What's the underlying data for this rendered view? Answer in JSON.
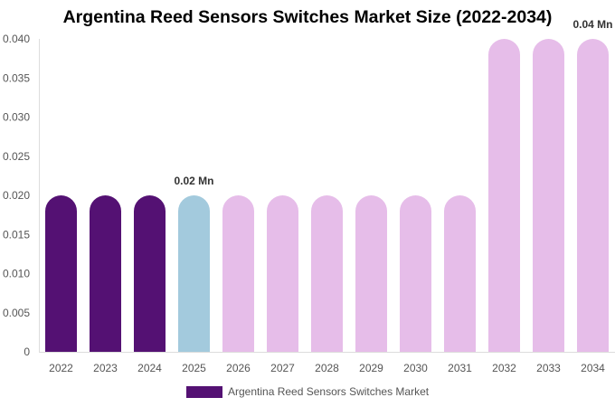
{
  "chart_data": {
    "type": "bar",
    "title": "Argentina Reed Sensors Switches Market Size (2022-2034)",
    "categories": [
      "2022",
      "2023",
      "2024",
      "2025",
      "2026",
      "2027",
      "2028",
      "2029",
      "2030",
      "2031",
      "2032",
      "2033",
      "2034"
    ],
    "series": [
      {
        "name": "Argentina Reed Sensors Switches Market",
        "values": [
          0.02,
          0.02,
          0.02,
          0.02,
          0.02,
          0.02,
          0.02,
          0.02,
          0.02,
          0.02,
          0.04,
          0.04,
          0.04
        ]
      }
    ],
    "bar_colors": [
      "#541173",
      "#541173",
      "#541173",
      "#a3cadd",
      "#e6bde9",
      "#e6bde9",
      "#e6bde9",
      "#e6bde9",
      "#e6bde9",
      "#e6bde9",
      "#e6bde9",
      "#e6bde9",
      "#e6bde9"
    ],
    "y_ticks": [
      "0",
      "0.005",
      "0.010",
      "0.015",
      "0.020",
      "0.025",
      "0.030",
      "0.035",
      "0.040"
    ],
    "ylim": [
      0,
      0.04
    ],
    "data_labels": [
      {
        "category": "2025",
        "text": "0.02 Mn"
      },
      {
        "category": "2034",
        "text": "0.04 Mn"
      }
    ],
    "legend": {
      "position": "bottom",
      "label": "Argentina Reed Sensors Switches Market",
      "color": "#541173"
    },
    "grid": false,
    "xlabel": "",
    "ylabel": ""
  }
}
